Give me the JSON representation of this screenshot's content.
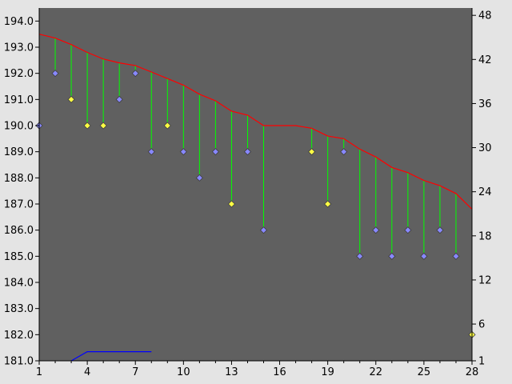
{
  "chart_data": {
    "type": "line",
    "x": [
      1,
      2,
      3,
      4,
      5,
      6,
      7,
      8,
      9,
      10,
      11,
      12,
      13,
      14,
      15,
      16,
      17,
      18,
      19,
      20,
      21,
      22,
      23,
      24,
      25,
      26,
      27,
      28
    ],
    "xticks": [
      1,
      4,
      7,
      10,
      13,
      16,
      19,
      22,
      25,
      28
    ],
    "xlim": [
      1,
      28
    ],
    "left_axis": {
      "ylim": [
        181,
        194.5
      ],
      "ticks": [
        181,
        182,
        183,
        184,
        185,
        186,
        187,
        188,
        189,
        190,
        191,
        192,
        193,
        194
      ],
      "tick_labels": [
        "181.0",
        "182.0",
        "183.0",
        "184.0",
        "185.0",
        "186.0",
        "187.0",
        "188.0",
        "189.0",
        "190.0",
        "191.0",
        "192.0",
        "193.0",
        "194.0"
      ]
    },
    "right_axis": {
      "ylim": [
        1,
        49
      ],
      "ticks": [
        1,
        6,
        12,
        18,
        24,
        30,
        36,
        42,
        48
      ],
      "tick_labels": [
        "1",
        "6",
        "12",
        "18",
        "24",
        "30",
        "36",
        "42",
        "48"
      ]
    },
    "series": [
      {
        "kind": "line",
        "axis": "left",
        "color": "#ff0000",
        "values": [
          193.5,
          193.35,
          193.1,
          192.8,
          192.55,
          192.4,
          192.3,
          192.05,
          191.8,
          191.55,
          191.2,
          190.95,
          190.55,
          190.4,
          190.0,
          190.0,
          190.0,
          189.9,
          189.6,
          189.5,
          189.1,
          188.8,
          188.4,
          188.2,
          187.9,
          187.7,
          187.4,
          186.8
        ]
      },
      {
        "kind": "diamond-markers",
        "axis": "left",
        "color": "#8888ff",
        "x": [
          1,
          2,
          6,
          7,
          8,
          10,
          11,
          12,
          14,
          15,
          20,
          21,
          22,
          23,
          24,
          25,
          26,
          27
        ],
        "values": [
          190,
          192,
          191,
          192,
          189,
          189,
          188,
          189,
          189,
          186,
          189,
          185,
          186,
          185,
          186,
          185,
          186,
          185
        ]
      },
      {
        "kind": "diamond-markers",
        "axis": "left",
        "color": "#ffff44",
        "x": [
          3,
          4,
          5,
          9,
          13,
          18,
          19,
          28
        ],
        "values": [
          191,
          190,
          190,
          190,
          187,
          189,
          187,
          182
        ]
      },
      {
        "kind": "drop-lines",
        "axis": "left",
        "color": "#00ff00"
      },
      {
        "kind": "line",
        "axis": "left",
        "color": "#0000ff",
        "x": [
          3,
          4,
          5,
          6,
          7,
          8
        ],
        "values": [
          181,
          181.35,
          181.35,
          181.35,
          181.35,
          181.35
        ]
      }
    ],
    "colors": {
      "background": "#e4e4e4",
      "plot_area": "#606060"
    },
    "grid": false
  }
}
